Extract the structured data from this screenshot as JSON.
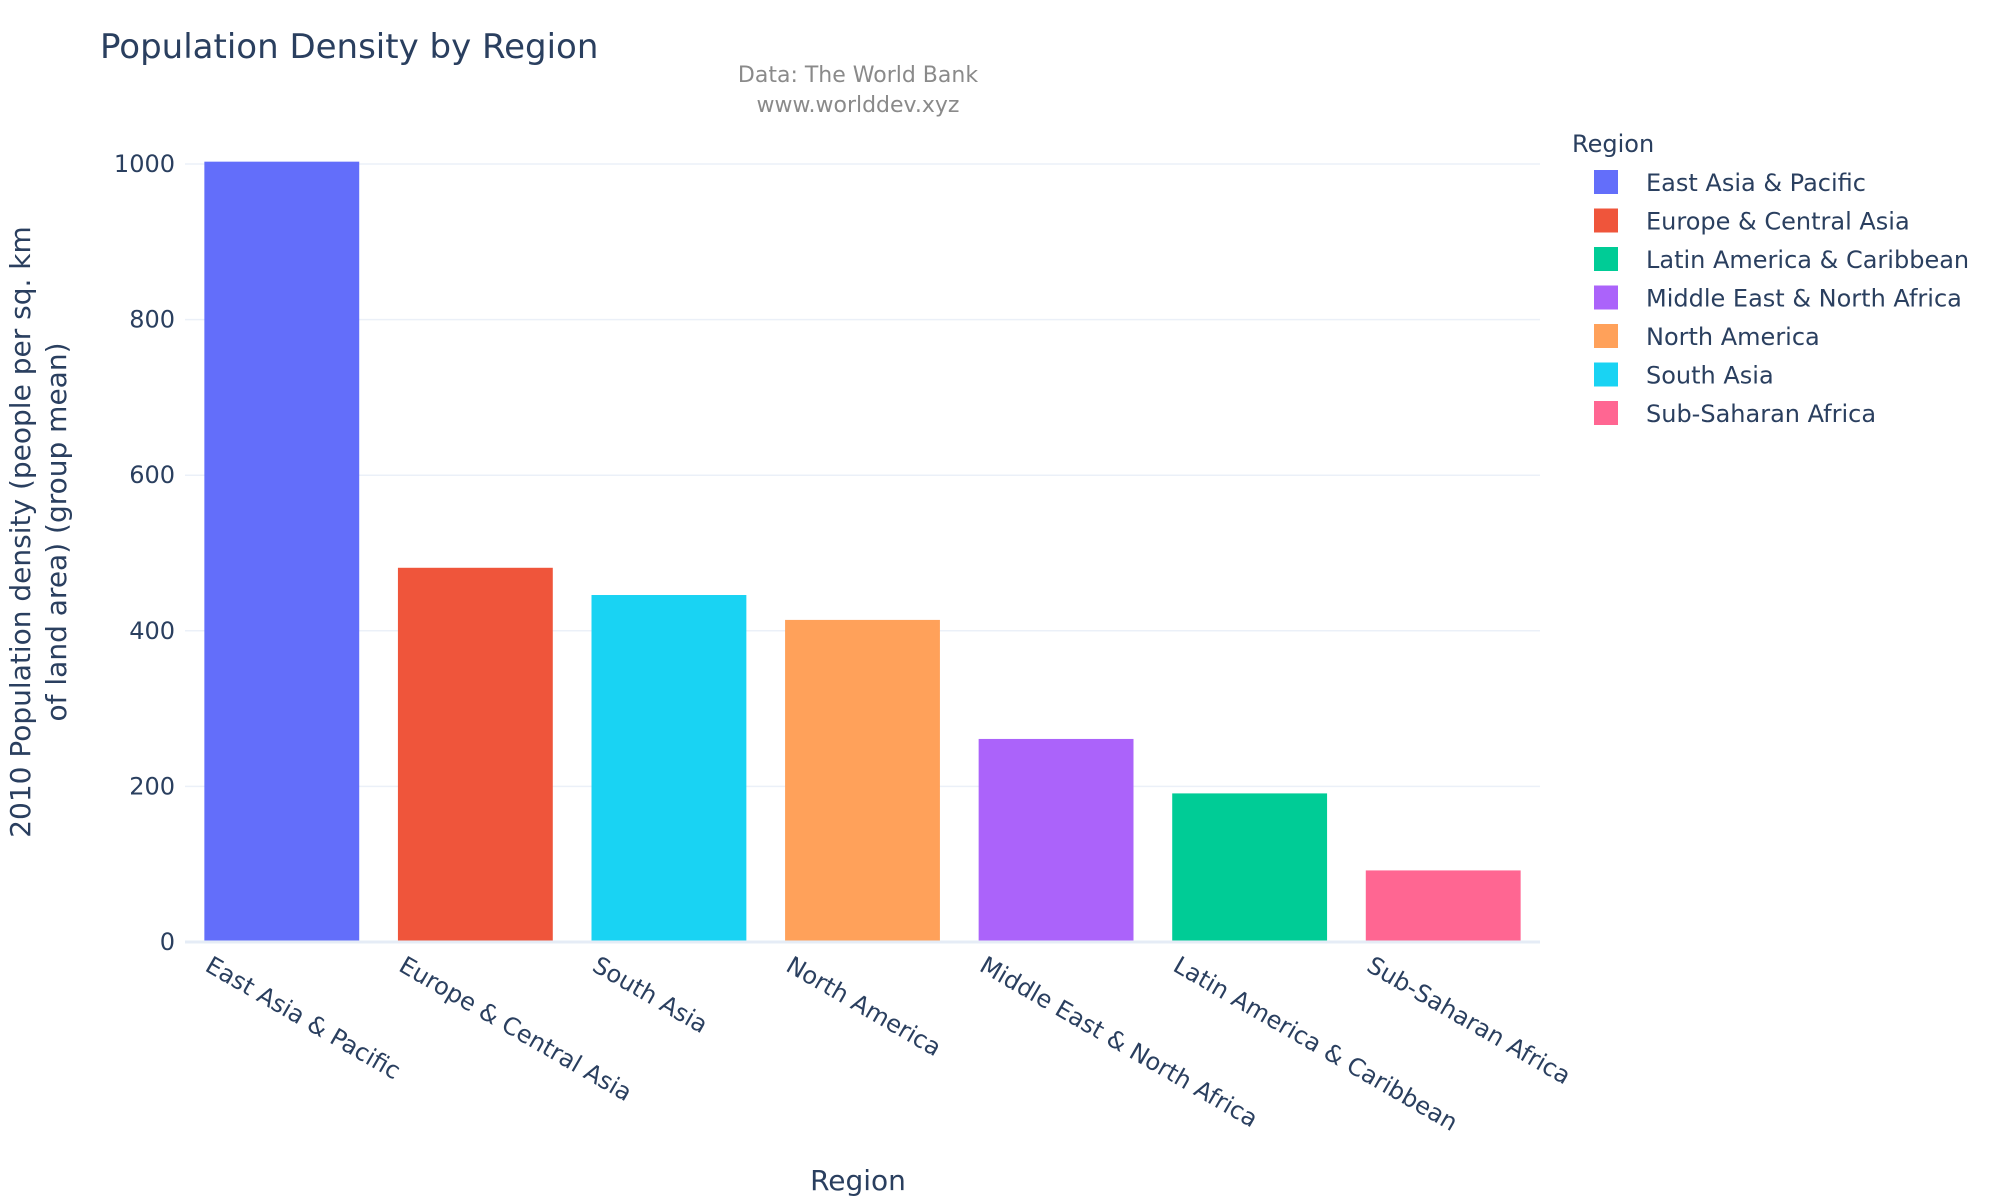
{
  "chart_data": {
    "type": "bar",
    "title": "Population Density by Region",
    "annotation_lines": [
      "Data: The World Bank",
      "www.worlddev.xyz"
    ],
    "xlabel": "Region",
    "ylabel_lines": [
      "2010 Population density (people per sq. km",
      "of land area) (group mean)"
    ],
    "ylim": [
      0,
      1000
    ],
    "yticks": [
      0,
      200,
      400,
      600,
      800,
      1000
    ],
    "grid": true,
    "categories": [
      "East Asia & Pacific",
      "Europe & Central Asia",
      "South Asia",
      "North America",
      "Middle East & North Africa",
      "Latin America & Caribbean",
      "Sub-Saharan Africa"
    ],
    "values": [
      1003,
      481,
      446,
      414,
      261,
      191,
      92
    ],
    "bar_colors": [
      "#636efa",
      "#EF553B",
      "#19d3f3",
      "#FFA15A",
      "#ab63fa",
      "#00cc96",
      "#FF6692"
    ],
    "legend": {
      "title": "Region",
      "placement": "right",
      "items": [
        {
          "label": "East Asia & Pacific",
          "color": "#636efa"
        },
        {
          "label": "Europe & Central Asia",
          "color": "#EF553B"
        },
        {
          "label": "Latin America & Caribbean",
          "color": "#00cc96"
        },
        {
          "label": "Middle East & North Africa",
          "color": "#ab63fa"
        },
        {
          "label": "North America",
          "color": "#FFA15A"
        },
        {
          "label": "South Asia",
          "color": "#19d3f3"
        },
        {
          "label": "Sub-Saharan Africa",
          "color": "#FF6692"
        }
      ]
    }
  }
}
